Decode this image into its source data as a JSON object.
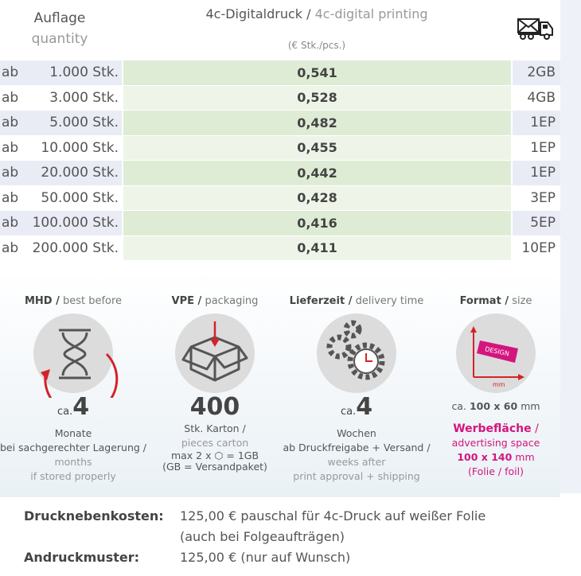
{
  "header": {
    "qty_de": "Auflage",
    "qty_en": "quantity",
    "print_de": "4c-Digitaldruck /",
    "print_en": "4c-digital printing",
    "unit": "(€ Stk./pcs.)",
    "shipping_icon": "mail-truck-icon"
  },
  "rows": [
    {
      "ab": "ab",
      "qty": "1.000 Stk.",
      "price": "0,541",
      "ship": "2GB"
    },
    {
      "ab": "ab",
      "qty": "3.000 Stk.",
      "price": "0,528",
      "ship": "4GB"
    },
    {
      "ab": "ab",
      "qty": "5.000 Stk.",
      "price": "0,482",
      "ship": "1EP"
    },
    {
      "ab": "ab",
      "qty": "10.000 Stk.",
      "price": "0,455",
      "ship": "1EP"
    },
    {
      "ab": "ab",
      "qty": "20.000 Stk.",
      "price": "0,442",
      "ship": "1EP"
    },
    {
      "ab": "ab",
      "qty": "50.000 Stk.",
      "price": "0,428",
      "ship": "3EP"
    },
    {
      "ab": "ab",
      "qty": "100.000 Stk.",
      "price": "0,416",
      "ship": "5EP"
    },
    {
      "ab": "ab",
      "qty": "200.000 Stk.",
      "price": "0,411",
      "ship": "10EP"
    }
  ],
  "info": {
    "mhd": {
      "title_de": "MHD /",
      "title_en": "best before",
      "ca": "ca.",
      "value": "4",
      "l1": "Monate",
      "l2": "bei sachgerechter Lagerung /",
      "l3": "months",
      "l4": "if stored properly"
    },
    "vpe": {
      "title_de": "VPE /",
      "title_en": "packaging",
      "value": "400",
      "l1": "Stk. Karton /",
      "l2": "pieces carton",
      "l3a": "max 2 x",
      "l3b": "= 1GB",
      "l4": "(GB = Versandpaket)"
    },
    "lief": {
      "title_de": "Lieferzeit /",
      "title_en": "delivery time",
      "ca": "ca.",
      "value": "4",
      "l1": "Wochen",
      "l2": "ab Druckfreigabe + Versand /",
      "l3": "weeks after",
      "l4": "print approval + shipping"
    },
    "format": {
      "title_de": "Format /",
      "title_en": "size",
      "icon_text": "DESIGN",
      "icon_unit": "mm",
      "size_ca": "ca.",
      "size": "100 x 60",
      "size_unit": "mm",
      "adv_de": "Werbefläche",
      "adv_sep": " /",
      "adv_en": "advertising space",
      "adv_size": "100 x 140",
      "adv_unit": "mm",
      "adv_note": "(Folie / foil)"
    }
  },
  "footer": [
    {
      "key": "Drucknebenkosten:",
      "v1": "125,00 € pauschal für 4c-Druck auf weißer Folie",
      "v2": "(auch bei Folgeaufträgen)"
    },
    {
      "key": "Andruckmuster:",
      "v1": "125,00 € (nur auf Wunsch)"
    }
  ]
}
